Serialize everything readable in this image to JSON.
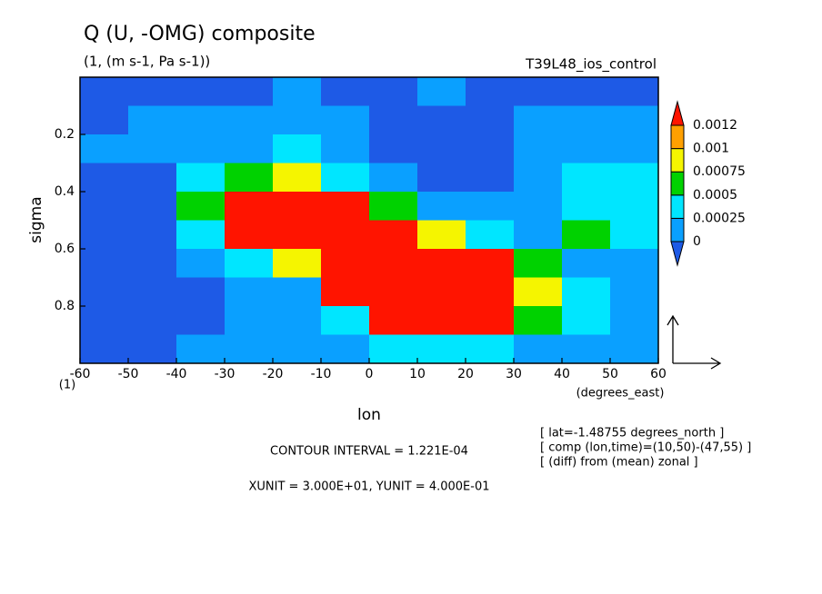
{
  "chart_data": {
    "type": "contour",
    "title": "Q (U, -OMG) composite",
    "subtitle": "(1, (m s-1, Pa s-1))",
    "run_label": "T39L48_ios_control",
    "x_label": "lon",
    "x_units": "(degrees_east)",
    "y_label": "sigma",
    "y_bottom_label": "(1)",
    "contour_interval": "CONTOUR INTERVAL = 1.221E-04",
    "units_note": "XUNIT = 3.000E+01, YUNIT = 4.000E-01",
    "info": [
      "[ lat=-1.48755 degrees_north ]",
      "[ comp (lon,time)=(10,50)-(47,55) ]",
      "[ (diff) from (mean) zonal ]"
    ],
    "xlim": [
      -60,
      60
    ],
    "xticks": [
      -60,
      -50,
      -40,
      -30,
      -20,
      -10,
      0,
      10,
      20,
      30,
      40,
      50,
      60
    ],
    "ylim": [
      0,
      1
    ],
    "yticks": [
      0.2,
      0.4,
      0.6,
      0.8
    ],
    "levels": [
      0,
      0.00025,
      0.0005,
      0.00075,
      0.001,
      0.0012
    ],
    "colors": [
      "#1e5ae6",
      "#0aa0ff",
      "#00e6ff",
      "#00d200",
      "#f5f500",
      "#ffa000",
      "#ff1400"
    ],
    "x": [
      -55,
      -45,
      -35,
      -25,
      -15,
      -5,
      5,
      15,
      25,
      35,
      45,
      55
    ],
    "y": [
      0.05,
      0.15,
      0.25,
      0.35,
      0.45,
      0.55,
      0.65,
      0.75,
      0.85,
      0.95
    ],
    "z": [
      [
        -0.0001,
        -0.0001,
        -0.0001,
        -0.0001,
        0.0001,
        -0.0001,
        -0.0001,
        0.0001,
        -0.0001,
        -0.0001,
        -0.0001,
        -0.0001
      ],
      [
        -0.0001,
        0.0001,
        0.0001,
        0.0002,
        0.0001,
        0.0001,
        -0.0001,
        -0.0001,
        -0.0001,
        0.0001,
        0.0002,
        0.0001
      ],
      [
        0.0001,
        0.0001,
        0.0001,
        0.0002,
        0.0003,
        0.0001,
        -0.0001,
        -0.0001,
        -0.0001,
        0.0001,
        0.0002,
        0.0002
      ],
      [
        -0.0001,
        -0.0001,
        0.0003,
        0.0006,
        0.0008,
        0.0004,
        0.0001,
        -0.0001,
        -0.0001,
        0.0001,
        0.0003,
        0.0003
      ],
      [
        -0.0001,
        -0.0001,
        0.0006,
        0.0013,
        0.0014,
        0.0013,
        0.0006,
        0.0002,
        0.0001,
        0.0001,
        0.0003,
        0.0003
      ],
      [
        -0.0001,
        -0.0001,
        0.0004,
        0.0013,
        0.0015,
        0.0014,
        0.0013,
        0.0008,
        0.0004,
        0.0002,
        0.0006,
        0.0003
      ],
      [
        -0.0001,
        -0.0001,
        0.0001,
        0.0004,
        0.0009,
        0.0013,
        0.0015,
        0.0014,
        0.0013,
        0.0007,
        0.0002,
        0.0001
      ],
      [
        -0.0001,
        -0.0001,
        -0.0001,
        0.0001,
        0.0002,
        0.0013,
        0.0015,
        0.0015,
        0.0014,
        0.0009,
        0.0003,
        0.0002
      ],
      [
        -0.0001,
        -0.0001,
        -0.0001,
        0.0001,
        0.0002,
        0.0004,
        0.0014,
        0.0015,
        0.0014,
        0.0006,
        0.0003,
        0.0002
      ],
      [
        -0.0001,
        -0.0001,
        0.0001,
        0.0001,
        0.0001,
        0.0001,
        0.0003,
        0.0004,
        0.0003,
        0.0002,
        0.0001,
        0.0001
      ]
    ]
  }
}
